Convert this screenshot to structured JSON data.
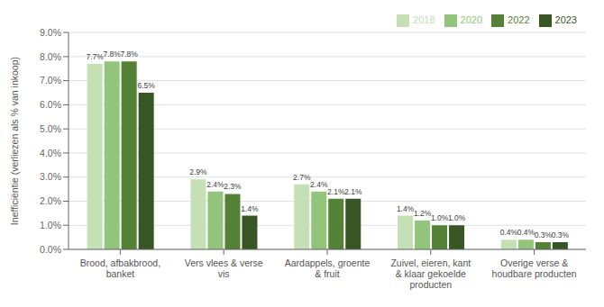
{
  "chart_data": {
    "type": "bar",
    "categories": [
      "Brood, afbakbrood,\nbanket",
      "Vers vlees & verse\nvis",
      "Aardappels, groente\n& fruit",
      "Zuivel, eieren, kant\n& klaar gekoelde\nproducten",
      "Overige verse &\nhoudbare producten"
    ],
    "series": [
      {
        "name": "2018",
        "color": "#c5e0b4",
        "values": [
          7.7,
          2.9,
          2.7,
          1.4,
          0.4
        ],
        "value_labels": [
          "7.7%",
          "2.9%",
          "2.7%",
          "1.4%",
          "0.4%"
        ]
      },
      {
        "name": "2020",
        "color": "#92c47b",
        "values": [
          7.8,
          2.4,
          2.4,
          1.2,
          0.4
        ],
        "value_labels": [
          "7.8%",
          "2.4%",
          "2.4%",
          "1.2%",
          "0.4%"
        ]
      },
      {
        "name": "2022",
        "color": "#538135",
        "values": [
          7.8,
          2.3,
          2.1,
          1.0,
          0.3
        ],
        "value_labels": [
          "7.8%",
          "2.3%",
          "2.1%",
          "1.0%",
          "0.3%"
        ]
      },
      {
        "name": "2023",
        "color": "#375623",
        "values": [
          6.5,
          1.4,
          2.1,
          1.0,
          0.3
        ],
        "value_labels": [
          "6.5%",
          "1.4%",
          "2.1%",
          "1.0%",
          "0.3%"
        ]
      }
    ],
    "ylabel": "Inefficiëntie (verliezen als % van inkoop)",
    "ylim": [
      0,
      9.0
    ],
    "yticks": [
      {
        "value": 0.0,
        "label": "0.0%"
      },
      {
        "value": 1.0,
        "label": "1.0%"
      },
      {
        "value": 2.0,
        "label": "2.0%"
      },
      {
        "value": 3.0,
        "label": "3.0%"
      },
      {
        "value": 4.0,
        "label": "4.0%"
      },
      {
        "value": 5.0,
        "label": "5.0%"
      },
      {
        "value": 6.0,
        "label": "6.0%"
      },
      {
        "value": 7.0,
        "label": "7.0%"
      },
      {
        "value": 8.0,
        "label": "8.0%"
      },
      {
        "value": 9.0,
        "label": "9.0%"
      }
    ],
    "grid": true,
    "legend": "upper right",
    "data_labels": true
  }
}
